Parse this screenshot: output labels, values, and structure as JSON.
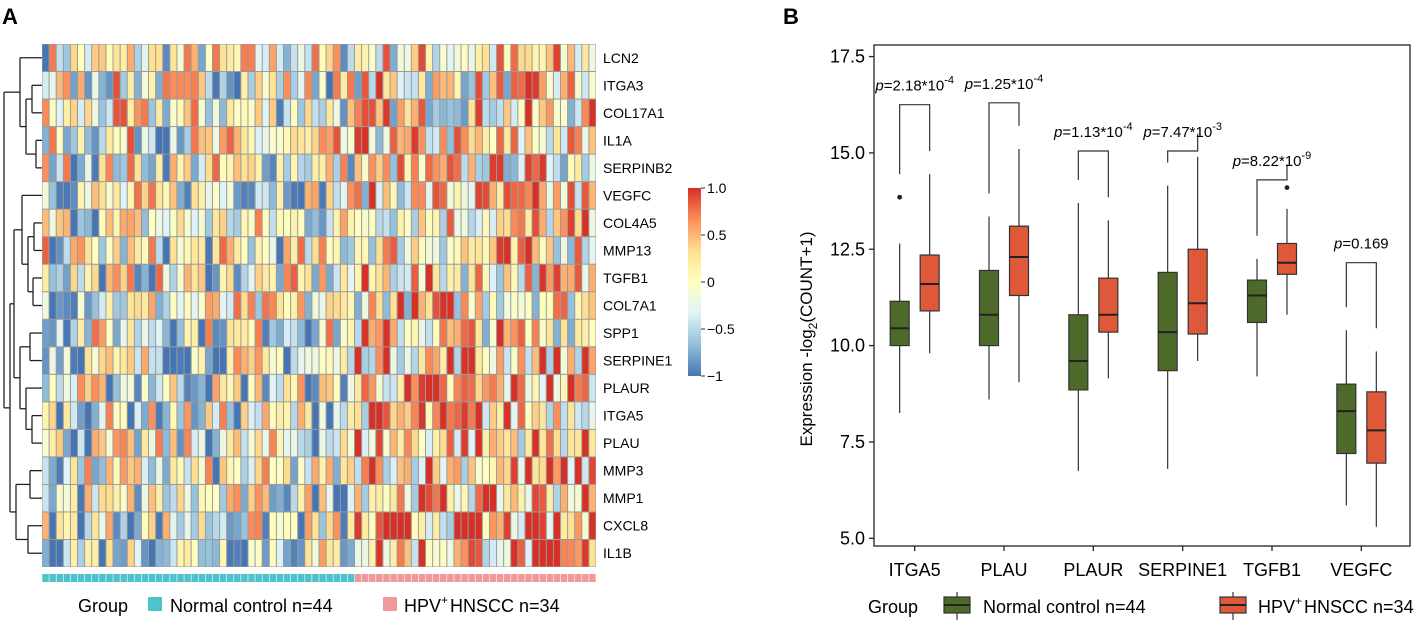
{
  "panel_a": {
    "label": "A",
    "legend": {
      "group_title": "Group",
      "normal_label": "Normal control n=44",
      "hpv_label": "HPV",
      "hpv_sup": "+",
      "hpv_rest": "HNSCC n=34",
      "normal_color": "#4dc3cb",
      "hpv_color": "#f0989a"
    },
    "colorbar": {
      "ticks": [
        "1.0",
        "0.5",
        "0",
        "−0.5",
        "−1"
      ],
      "values": [
        1.0,
        0.5,
        0,
        -0.5,
        -1.0
      ],
      "colors": [
        "#d73027",
        "#fc8d59",
        "#fee090",
        "#ffffbf",
        "#e0f3f8",
        "#91bfdb",
        "#4575b4"
      ]
    }
  },
  "panel_b": {
    "label": "B",
    "legend": {
      "group_title": "Group",
      "normal_label": "Normal control n=44",
      "hpv_label": "HPV",
      "hpv_sup": "+",
      "hpv_rest": "HNSCC n=34",
      "normal_color": "#4e6a2b",
      "hpv_color": "#e0583a"
    },
    "pvalues": [
      {
        "p": "p",
        "mant": "=2.18*10",
        "exp": "-4"
      },
      {
        "p": "p",
        "mant": "=1.25*10",
        "exp": "-4"
      },
      {
        "p": "p",
        "mant": "=1.13*10",
        "exp": "-4"
      },
      {
        "p": "p",
        "mant": "=7.47*10",
        "exp": "-3"
      },
      {
        "p": "p",
        "mant": "=8.22*10",
        "exp": "-9"
      },
      {
        "p": "p",
        "mant": "=0.169",
        "exp": ""
      }
    ]
  },
  "chart_data": [
    {
      "type": "heatmap",
      "title": "",
      "rows": [
        "LCN2",
        "ITGA3",
        "COL17A1",
        "IL1A",
        "SERPINB2",
        "VEGFC",
        "COL4A5",
        "MMP13",
        "TGFB1",
        "COL7A1",
        "SPP1",
        "SERPINE1",
        "PLAUR",
        "ITGA5",
        "PLAU",
        "MMP3",
        "MMP1",
        "CXCL8",
        "IL1B"
      ],
      "n_columns": 78,
      "column_groups": {
        "Normal control": 44,
        "HPV+ HNSCC": 34
      },
      "value_range": [
        -1,
        1
      ],
      "values_note": "scaled expression per gene, cells generated to mimic visible pattern"
    },
    {
      "type": "box",
      "title": "",
      "xlabel": "",
      "ylabel": "Expression -log2(COUNT+1)",
      "ylim": [
        4.8,
        17.8
      ],
      "yticks": [
        5.0,
        7.5,
        10.0,
        12.5,
        15.0,
        17.5
      ],
      "ytick_labels": [
        "5.0",
        "7.5",
        "10.0",
        "12.5",
        "15.0",
        "17.5"
      ],
      "categories": [
        "ITGA5",
        "PLAU",
        "PLAUR",
        "SERPINE1",
        "TGFB1",
        "VEGFC"
      ],
      "series": [
        {
          "name": "Normal control n=44",
          "boxes": [
            {
              "min": 8.25,
              "q1": 10.0,
              "median": 10.45,
              "q3": 11.15,
              "max": 12.65,
              "outliers": [
                13.85
              ]
            },
            {
              "min": 8.6,
              "q1": 10.0,
              "median": 10.8,
              "q3": 11.95,
              "max": 13.35,
              "outliers": []
            },
            {
              "min": 6.75,
              "q1": 8.85,
              "median": 9.6,
              "q3": 10.8,
              "max": 13.7,
              "outliers": []
            },
            {
              "min": 6.8,
              "q1": 9.35,
              "median": 10.35,
              "q3": 11.9,
              "max": 14.15,
              "outliers": []
            },
            {
              "min": 9.2,
              "q1": 10.6,
              "median": 11.3,
              "q3": 11.7,
              "max": 12.25,
              "outliers": []
            },
            {
              "min": 5.85,
              "q1": 7.2,
              "median": 8.3,
              "q3": 9.0,
              "max": 10.4,
              "outliers": []
            }
          ]
        },
        {
          "name": "HPV+ HNSCC n=34",
          "boxes": [
            {
              "min": 9.8,
              "q1": 10.9,
              "median": 11.6,
              "q3": 12.35,
              "max": 14.45,
              "outliers": []
            },
            {
              "min": 9.05,
              "q1": 11.3,
              "median": 12.3,
              "q3": 13.1,
              "max": 15.1,
              "outliers": []
            },
            {
              "min": 9.15,
              "q1": 10.35,
              "median": 10.8,
              "q3": 11.75,
              "max": 13.25,
              "outliers": []
            },
            {
              "min": 9.6,
              "q1": 10.3,
              "median": 11.1,
              "q3": 12.5,
              "max": 14.9,
              "outliers": []
            },
            {
              "min": 10.8,
              "q1": 11.85,
              "median": 12.15,
              "q3": 12.65,
              "max": 13.55,
              "outliers": [
                14.1
              ]
            },
            {
              "min": 5.3,
              "q1": 6.95,
              "median": 7.8,
              "q3": 8.8,
              "max": 9.85,
              "outliers": []
            }
          ]
        }
      ],
      "brackets": [
        {
          "level": 16.25
        },
        {
          "level": 16.3
        },
        {
          "level": 15.05
        },
        {
          "level": 15.05
        },
        {
          "level": 14.3
        },
        {
          "level": 12.15
        }
      ],
      "pvalue_labels": [
        "p=2.18*10^-4",
        "p=1.25*10^-4",
        "p=1.13*10^-4",
        "p=7.47*10^-3",
        "p=8.22*10^-9",
        "p=0.169"
      ]
    }
  ]
}
